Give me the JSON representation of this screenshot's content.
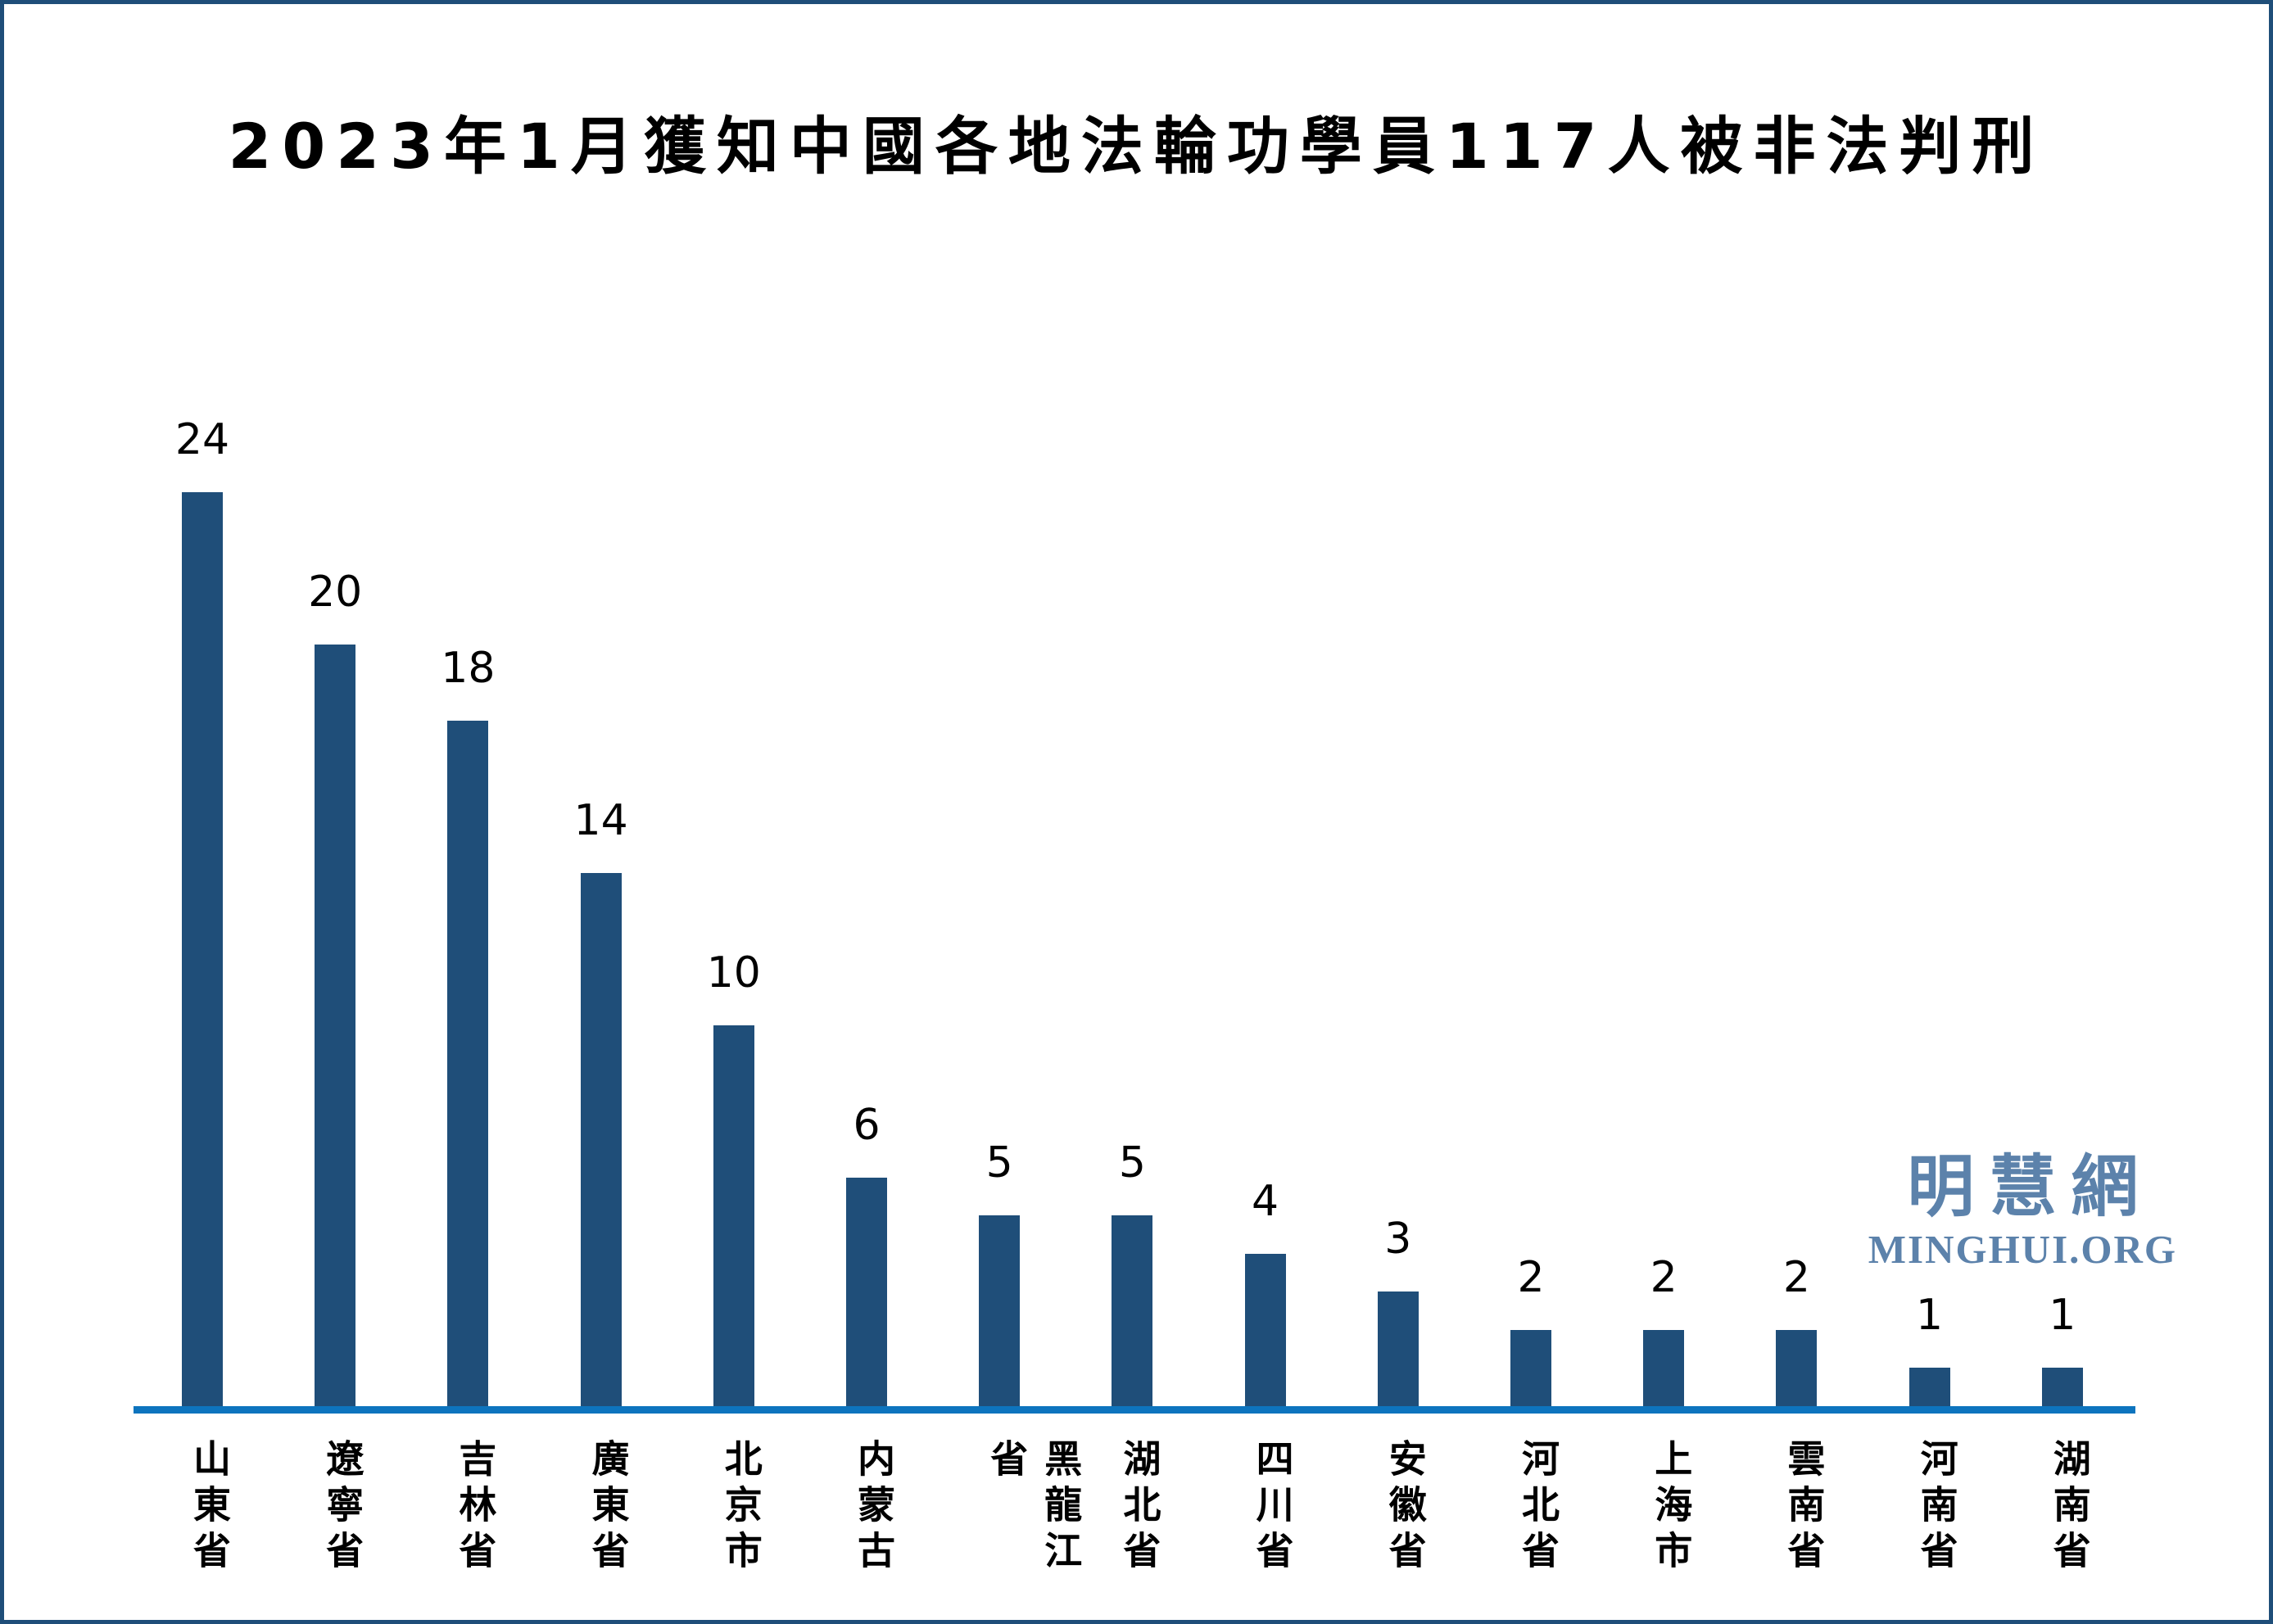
{
  "title": "2023年1月獲知中國各地法輪功學員117人被非法判刑",
  "watermark": {
    "cjk": "明慧網",
    "latin": "MINGHUI.ORG"
  },
  "colors": {
    "bar": "#1F4E79",
    "baseline": "#0D74BE",
    "border": "#1F4E79",
    "watermark": "#5C82AB",
    "text": "#000000",
    "background": "#FFFFFF"
  },
  "chart_data": {
    "type": "bar",
    "title": "2023年1月獲知中國各地法輪功學員117人被非法判刑",
    "categories": [
      "山東省",
      "遼寧省",
      "吉林省",
      "廣東省",
      "北京市",
      "内蒙古",
      "黑龍江省",
      "湖北省",
      "四川省",
      "安徽省",
      "河北省",
      "上海市",
      "雲南省",
      "河南省",
      "湖南省"
    ],
    "values": [
      24,
      20,
      18,
      14,
      10,
      6,
      5,
      5,
      4,
      3,
      2,
      2,
      2,
      1,
      1
    ],
    "total_mentioned_in_title": 117,
    "xlabel": "",
    "ylabel": "",
    "ylim": [
      0,
      26
    ],
    "grid": false,
    "legend": false,
    "y_axis_shown": false,
    "data_labels": "above each bar",
    "x_label_orientation": "vertical-stacked",
    "bar_color": "#1F4E79",
    "baseline_color": "#0D74BE"
  }
}
